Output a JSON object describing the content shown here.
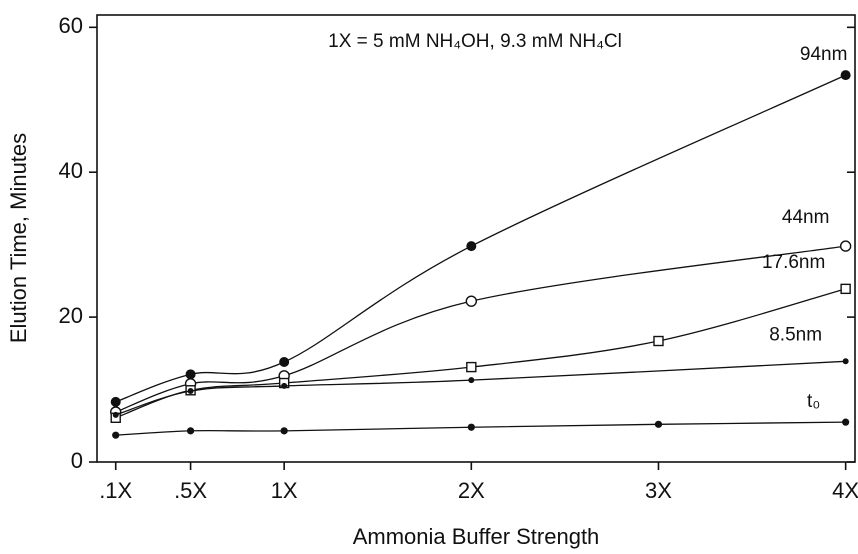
{
  "chart_data": {
    "type": "line",
    "annotation": "1X = 5 mM NH₄OH, 9.3 mM NH₄Cl",
    "xlabel": "Ammonia Buffer Strength",
    "ylabel": "Elution Time, Minutes",
    "xlim": [
      0,
      4.05
    ],
    "ylim": [
      0,
      61.7
    ],
    "xticks": [
      {
        "value": 0.1,
        "label": ".1X"
      },
      {
        "value": 0.5,
        "label": ".5X"
      },
      {
        "value": 1,
        "label": "1X"
      },
      {
        "value": 2,
        "label": "2X"
      },
      {
        "value": 3,
        "label": "3X"
      },
      {
        "value": 4,
        "label": "4X"
      }
    ],
    "yticks": [
      0,
      20,
      40,
      60
    ],
    "series": [
      {
        "name": "94nm",
        "color": "#111111",
        "marker": "filled-circle",
        "x": [
          0.1,
          0.5,
          1,
          2,
          4
        ],
        "values": [
          8.3,
          12.1,
          13.8,
          29.8,
          53.4
        ]
      },
      {
        "name": "44nm",
        "color": "#111111",
        "marker": "open-circle",
        "x": [
          0.1,
          0.5,
          1,
          2,
          4
        ],
        "values": [
          6.9,
          10.8,
          11.9,
          22.2,
          29.8
        ]
      },
      {
        "name": "17.6nm",
        "color": "#111111",
        "marker": "open-square",
        "x": [
          0.1,
          0.5,
          1,
          2,
          3,
          4
        ],
        "values": [
          6.1,
          9.9,
          10.9,
          13.1,
          16.7,
          23.9
        ]
      },
      {
        "name": "8.5nm",
        "color": "#111111",
        "marker": "small-dot",
        "x": [
          0.1,
          0.5,
          1,
          2,
          4
        ],
        "values": [
          6.5,
          9.8,
          10.5,
          11.3,
          13.9
        ]
      },
      {
        "name": "t₀",
        "color": "#111111",
        "marker": "dot",
        "x": [
          0.1,
          0.5,
          1,
          2,
          3,
          4
        ],
        "values": [
          3.7,
          4.3,
          4.3,
          4.8,
          5.2,
          5.5
        ]
      }
    ]
  }
}
